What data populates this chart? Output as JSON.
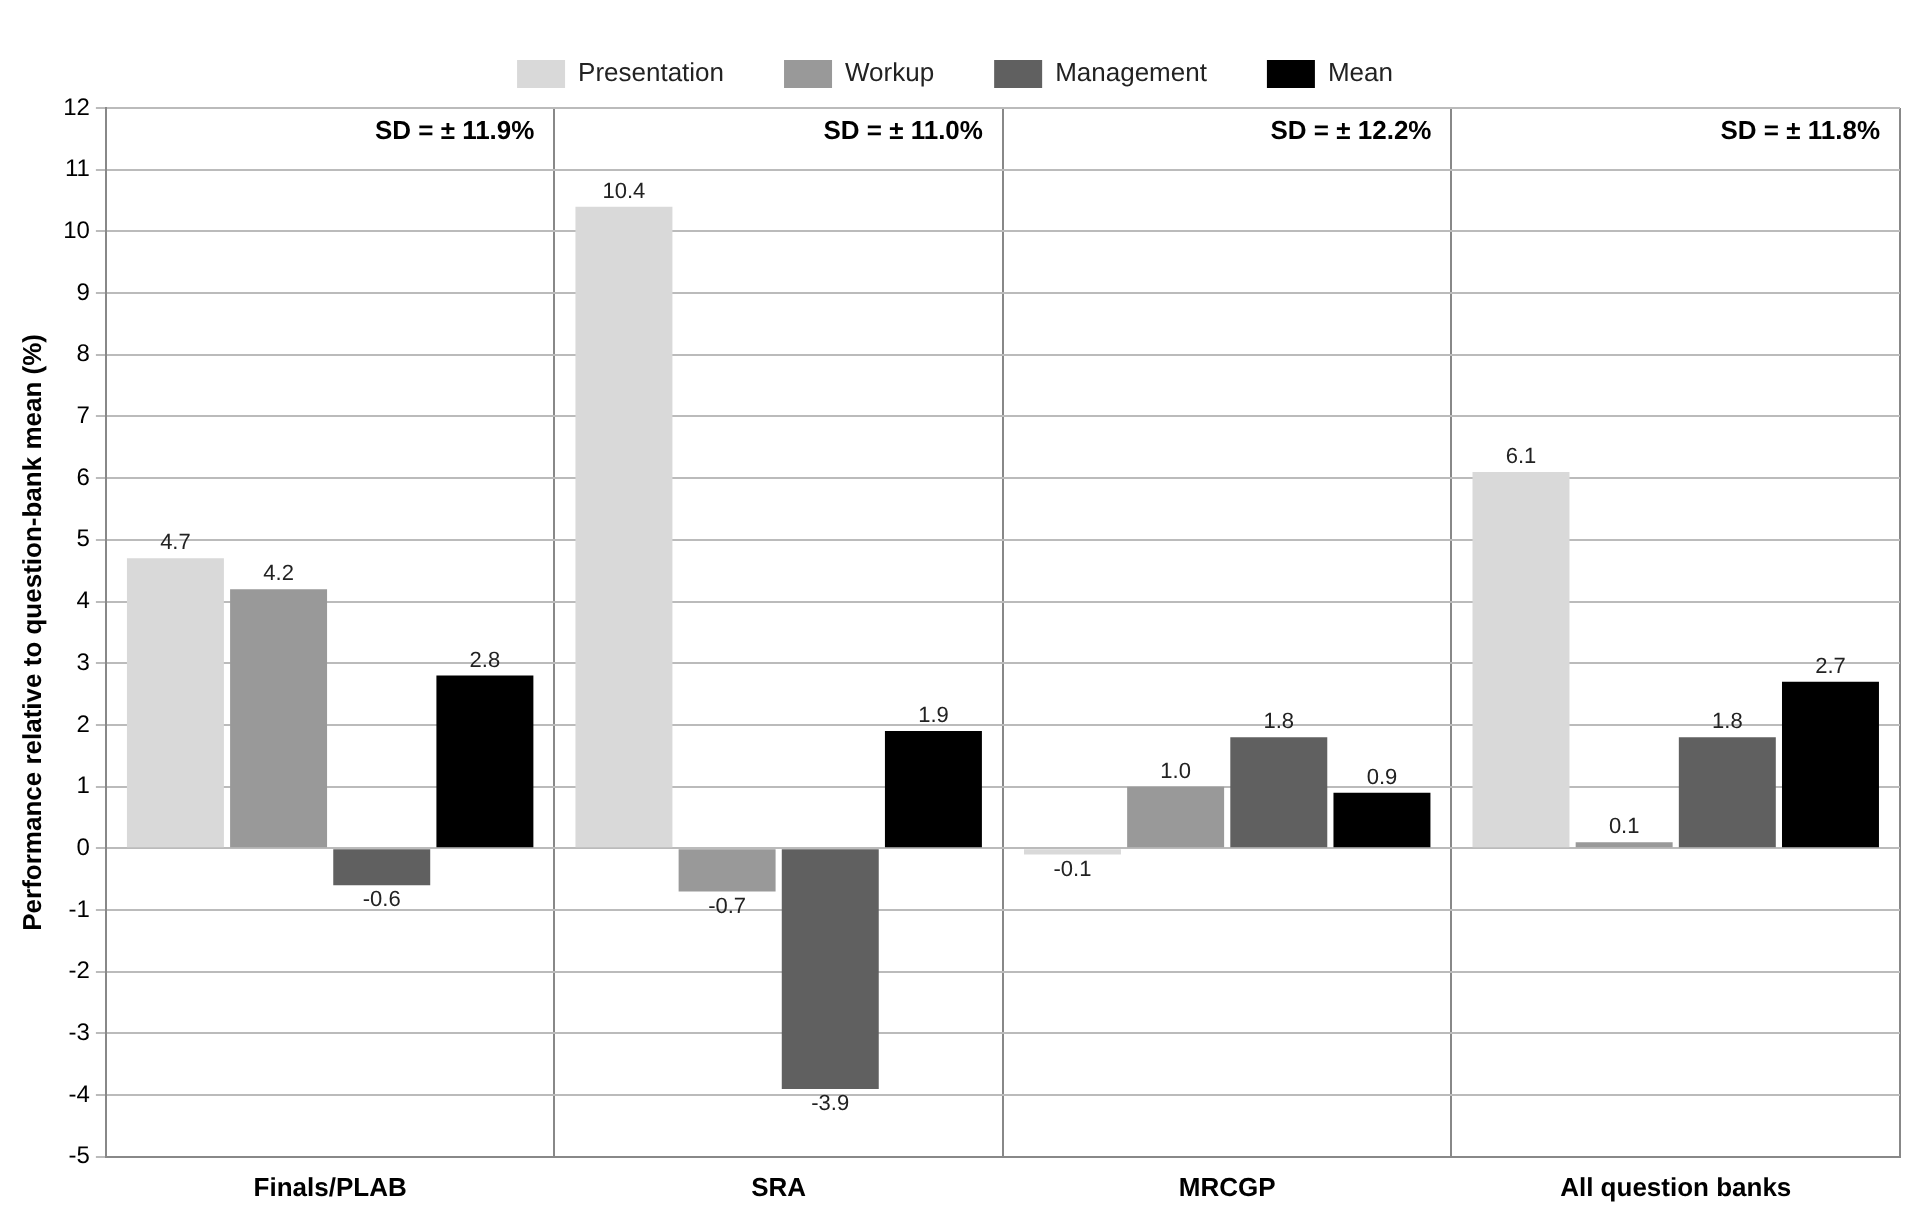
{
  "chart_data": {
    "type": "bar",
    "categories": [
      "Finals/PLAB",
      "SRA",
      "MRCGP",
      "All question banks"
    ],
    "series": [
      {
        "name": "Presentation",
        "color": "#d9d9d9",
        "values": [
          4.7,
          10.4,
          -0.1,
          6.1
        ],
        "value_labels": [
          "4.7",
          "10.4",
          "-0.1",
          "6.1"
        ]
      },
      {
        "name": "Workup",
        "color": "#999999",
        "values": [
          4.2,
          -0.7,
          1.0,
          0.1
        ],
        "value_labels": [
          "4.2",
          "-0.7",
          "1.0",
          "0.1"
        ]
      },
      {
        "name": "Management",
        "color": "#606060",
        "values": [
          -0.6,
          -3.9,
          1.8,
          1.8
        ],
        "value_labels": [
          "-0.6",
          "-3.9",
          "1.8",
          "1.8"
        ]
      },
      {
        "name": "Mean",
        "color": "#000000",
        "values": [
          2.8,
          1.9,
          0.9,
          2.7
        ],
        "value_labels": [
          "2.8",
          "1.9",
          "0.9",
          "2.7"
        ]
      }
    ],
    "ylabel": "Performance relative to question-bank mean (%)",
    "ylim": [
      -5,
      12
    ],
    "yticks": [
      -5,
      -4,
      -3,
      -2,
      -1,
      0,
      1,
      2,
      3,
      4,
      5,
      6,
      7,
      8,
      9,
      10,
      11,
      12
    ],
    "annotations": [
      "SD = ± 11.9%",
      "SD = ± 11.0%",
      "SD = ± 12.2%",
      "SD = ± 11.8%"
    ],
    "grid": true,
    "legend": "top"
  }
}
